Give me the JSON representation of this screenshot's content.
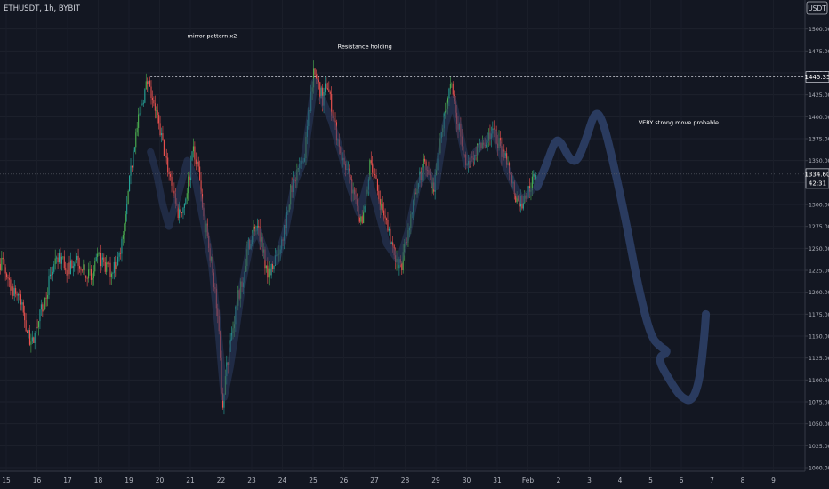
{
  "header": {
    "symbol_text": "ETHUSDT, 1h, BYBIT",
    "currency": "USDT"
  },
  "annotations": {
    "mirror": "mirror pattern x2",
    "resistance": "Resistance holding",
    "strong_move": "VERY strong move probable"
  },
  "price_labels": {
    "resistance_price": "1445.35",
    "current_price": "1334.60",
    "countdown": "42:31"
  },
  "colors": {
    "background": "#131722",
    "up": "#26a69a",
    "down": "#ef5350",
    "up_bright": "#4caf50",
    "drawing": "#2b3d63",
    "text": "#d1d4dc"
  },
  "chart_data": {
    "type": "candlestick",
    "xlabel": "",
    "ylabel": "",
    "ylim": [
      1000,
      1525
    ],
    "y_ticks": [
      "1500.00",
      "1475.00",
      "1450.00",
      "1425.00",
      "1400.00",
      "1375.00",
      "1350.00",
      "1325.00",
      "1300.00",
      "1275.00",
      "1250.00",
      "1225.00",
      "1200.00",
      "1175.00",
      "1150.00",
      "1125.00",
      "1100.00",
      "1075.00",
      "1050.00",
      "1025.00",
      "1000.00"
    ],
    "x_ticks": [
      {
        "label": "15",
        "day": 15
      },
      {
        "label": "16",
        "day": 16
      },
      {
        "label": "17",
        "day": 17
      },
      {
        "label": "18",
        "day": 18
      },
      {
        "label": "19",
        "day": 19
      },
      {
        "label": "20",
        "day": 20
      },
      {
        "label": "21",
        "day": 21
      },
      {
        "label": "22",
        "day": 22
      },
      {
        "label": "23",
        "day": 23
      },
      {
        "label": "24",
        "day": 24
      },
      {
        "label": "25",
        "day": 25
      },
      {
        "label": "26",
        "day": 26
      },
      {
        "label": "27",
        "day": 27
      },
      {
        "label": "28",
        "day": 28
      },
      {
        "label": "29",
        "day": 29
      },
      {
        "label": "30",
        "day": 30
      },
      {
        "label": "31",
        "day": 31
      },
      {
        "label": "Feb",
        "day": 32
      },
      {
        "label": "2",
        "day": 33
      },
      {
        "label": "3",
        "day": 34
      },
      {
        "label": "4",
        "day": 35
      },
      {
        "label": "5",
        "day": 36
      },
      {
        "label": "6",
        "day": 37
      },
      {
        "label": "7",
        "day": 38
      },
      {
        "label": "8",
        "day": 39
      },
      {
        "label": "9",
        "day": 40
      }
    ],
    "price_keypoints": [
      [
        14.6,
        1240
      ],
      [
        14.9,
        1230
      ],
      [
        15.2,
        1205
      ],
      [
        15.4,
        1195
      ],
      [
        15.6,
        1170
      ],
      [
        15.8,
        1135
      ],
      [
        16.0,
        1160
      ],
      [
        16.2,
        1185
      ],
      [
        16.5,
        1225
      ],
      [
        16.8,
        1240
      ],
      [
        17.0,
        1225
      ],
      [
        17.2,
        1240
      ],
      [
        17.5,
        1230
      ],
      [
        17.8,
        1215
      ],
      [
        18.0,
        1240
      ],
      [
        18.3,
        1225
      ],
      [
        18.6,
        1230
      ],
      [
        18.8,
        1260
      ],
      [
        18.9,
        1285
      ],
      [
        19.0,
        1320
      ],
      [
        19.2,
        1375
      ],
      [
        19.45,
        1420
      ],
      [
        19.6,
        1440
      ],
      [
        19.8,
        1420
      ],
      [
        20.0,
        1385
      ],
      [
        20.2,
        1350
      ],
      [
        20.4,
        1325
      ],
      [
        20.6,
        1290
      ],
      [
        20.8,
        1300
      ],
      [
        21.0,
        1340
      ],
      [
        21.1,
        1360
      ],
      [
        21.25,
        1345
      ],
      [
        21.4,
        1290
      ],
      [
        21.6,
        1255
      ],
      [
        21.8,
        1205
      ],
      [
        21.95,
        1140
      ],
      [
        22.05,
        1070
      ],
      [
        22.15,
        1105
      ],
      [
        22.3,
        1140
      ],
      [
        22.5,
        1185
      ],
      [
        22.7,
        1215
      ],
      [
        22.9,
        1255
      ],
      [
        23.1,
        1275
      ],
      [
        23.3,
        1260
      ],
      [
        23.5,
        1225
      ],
      [
        23.7,
        1230
      ],
      [
        23.9,
        1250
      ],
      [
        24.1,
        1280
      ],
      [
        24.3,
        1320
      ],
      [
        24.5,
        1340
      ],
      [
        24.7,
        1350
      ],
      [
        24.85,
        1400
      ],
      [
        25.0,
        1450
      ],
      [
        25.15,
        1440
      ],
      [
        25.3,
        1420
      ],
      [
        25.45,
        1440
      ],
      [
        25.6,
        1410
      ],
      [
        25.8,
        1375
      ],
      [
        26.0,
        1345
      ],
      [
        26.2,
        1330
      ],
      [
        26.4,
        1300
      ],
      [
        26.6,
        1275
      ],
      [
        26.8,
        1335
      ],
      [
        26.9,
        1350
      ],
      [
        27.1,
        1315
      ],
      [
        27.3,
        1285
      ],
      [
        27.5,
        1265
      ],
      [
        27.7,
        1240
      ],
      [
        27.85,
        1225
      ],
      [
        28.0,
        1255
      ],
      [
        28.2,
        1290
      ],
      [
        28.4,
        1320
      ],
      [
        28.6,
        1345
      ],
      [
        28.75,
        1335
      ],
      [
        28.9,
        1315
      ],
      [
        29.0,
        1330
      ],
      [
        29.2,
        1385
      ],
      [
        29.4,
        1425
      ],
      [
        29.5,
        1435
      ],
      [
        29.65,
        1400
      ],
      [
        29.85,
        1375
      ],
      [
        30.0,
        1340
      ],
      [
        30.2,
        1355
      ],
      [
        30.4,
        1365
      ],
      [
        30.6,
        1370
      ],
      [
        30.8,
        1385
      ],
      [
        31.0,
        1375
      ],
      [
        31.2,
        1355
      ],
      [
        31.4,
        1340
      ],
      [
        31.6,
        1310
      ],
      [
        31.8,
        1300
      ],
      [
        32.0,
        1315
      ],
      [
        32.2,
        1330
      ],
      [
        32.3,
        1334.6
      ]
    ],
    "resistance_level": 1445.35,
    "current_price": 1334.6,
    "projection_path": [
      [
        32.3,
        1320
      ],
      [
        32.6,
        1345
      ],
      [
        32.9,
        1375
      ],
      [
        33.1,
        1370
      ],
      [
        33.35,
        1352
      ],
      [
        33.6,
        1348
      ],
      [
        33.9,
        1375
      ],
      [
        34.2,
        1408
      ],
      [
        34.45,
        1395
      ],
      [
        34.8,
        1345
      ],
      [
        35.2,
        1280
      ],
      [
        35.6,
        1205
      ],
      [
        36.0,
        1150
      ],
      [
        36.3,
        1138
      ],
      [
        36.6,
        1132
      ],
      [
        36.2,
        1125
      ],
      [
        36.7,
        1095
      ],
      [
        37.0,
        1080
      ],
      [
        37.35,
        1075
      ],
      [
        37.6,
        1100
      ],
      [
        37.75,
        1150
      ],
      [
        37.8,
        1175
      ]
    ],
    "annotation_positions": {
      "mirror": [
        20.9,
        1490
      ],
      "resistance": [
        25.8,
        1478
      ],
      "strong_move": [
        35.6,
        1391
      ]
    }
  }
}
